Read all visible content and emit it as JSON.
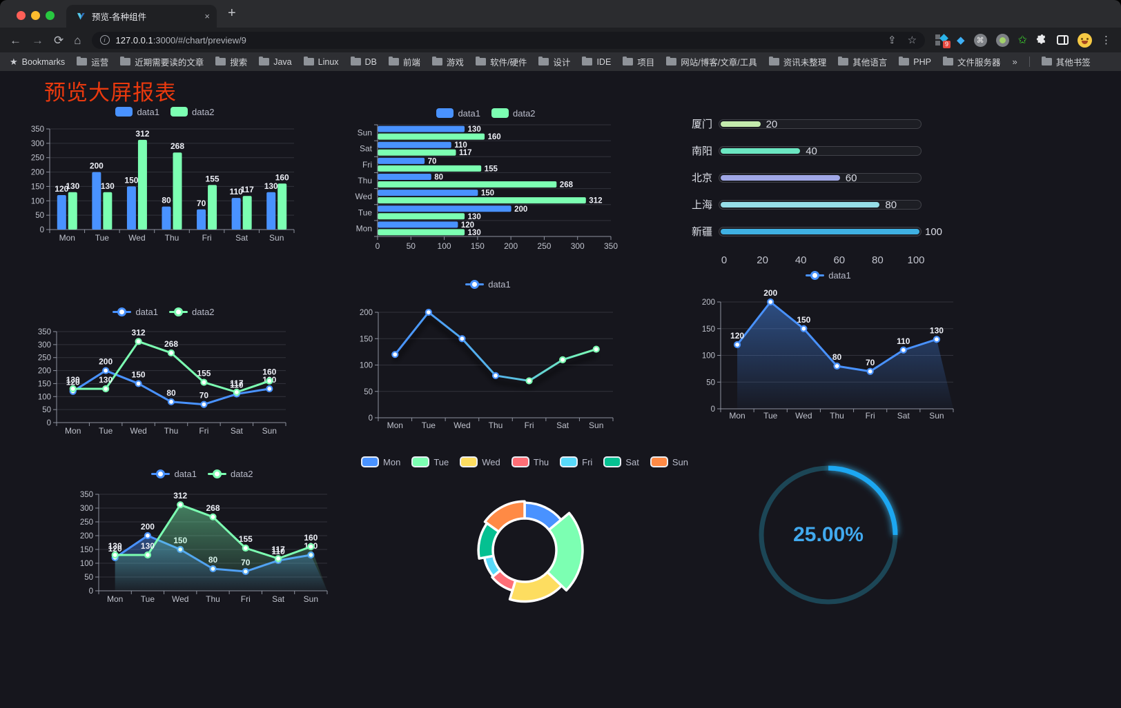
{
  "browser": {
    "traffic_colors": [
      "#ff5f57",
      "#febc2e",
      "#28c840"
    ],
    "tab_title": "预览-各种组件",
    "tab_close": "×",
    "new_tab": "+",
    "icons": {
      "back": "←",
      "forward": "→",
      "reload": "⟳",
      "home": "⌂",
      "info": "i",
      "share": "⇪",
      "star": "☆",
      "gem": "◆",
      "cmd": "⌘",
      "green_star": "✩",
      "menu": "⋮",
      "bookmarks_star": "★",
      "chevron": "»"
    },
    "extension_badge": "9",
    "url_host": "127.0.0.1",
    "url_rest": ":3000/#/chart/preview/9",
    "bookmarks_label": "Bookmarks",
    "bookmark_folders": [
      "运营",
      "近期需要读的文章",
      "搜索",
      "Java",
      "Linux",
      "DB",
      "前端",
      "游戏",
      "软件/硬件",
      "设计",
      "IDE",
      "项目",
      "网站/博客/文章/工具",
      "资讯未整理",
      "其他语言",
      "PHP",
      "文件服务器"
    ],
    "other_bookmarks": "其他书签"
  },
  "page": {
    "title": "预览大屏报表",
    "title_color": "#ea390e"
  },
  "chart_data": [
    {
      "id": "c1",
      "type": "bar",
      "categories": [
        "Mon",
        "Tue",
        "Wed",
        "Thu",
        "Fri",
        "Sat",
        "Sun"
      ],
      "series": [
        {
          "name": "data1",
          "color": "#4992ff",
          "values": [
            120,
            200,
            150,
            80,
            70,
            110,
            130
          ]
        },
        {
          "name": "data2",
          "color": "#7cffb2",
          "values": [
            130,
            130,
            312,
            268,
            155,
            117,
            160
          ]
        }
      ],
      "ylim": [
        0,
        350
      ],
      "yticks": [
        0,
        50,
        100,
        150,
        200,
        250,
        300,
        350
      ],
      "legend_icon": "rect",
      "grid": true,
      "point_labels": true
    },
    {
      "id": "c2",
      "type": "bar-horizontal",
      "categories": [
        "Mon",
        "Tue",
        "Wed",
        "Thu",
        "Fri",
        "Sat",
        "Sun"
      ],
      "display_order_top_to_bottom": [
        "Sun",
        "Sat",
        "Fri",
        "Thu",
        "Wed",
        "Tue",
        "Mon"
      ],
      "series": [
        {
          "name": "data1",
          "color": "#4992ff",
          "values": [
            120,
            200,
            150,
            80,
            70,
            110,
            130
          ]
        },
        {
          "name": "data2",
          "color": "#7cffb2",
          "values": [
            130,
            130,
            312,
            268,
            155,
            117,
            160
          ]
        }
      ],
      "xlim": [
        0,
        350
      ],
      "xticks": [
        0,
        50,
        100,
        150,
        200,
        250,
        300,
        350
      ],
      "legend_icon": "rect",
      "grid": true,
      "point_labels": true
    },
    {
      "id": "c3",
      "type": "progress",
      "categories": [
        "厦门",
        "南阳",
        "北京",
        "上海",
        "新疆"
      ],
      "values": [
        20,
        40,
        60,
        80,
        100
      ],
      "colors": [
        "#c4ebad",
        "#6be6c1",
        "#a0a7e6",
        "#96dee8",
        "#3fb1e3"
      ],
      "xlim": [
        0,
        100
      ],
      "xticks": [
        0,
        20,
        40,
        60,
        80,
        100
      ]
    },
    {
      "id": "c4",
      "type": "line",
      "categories": [
        "Mon",
        "Tue",
        "Wed",
        "Thu",
        "Fri",
        "Sat",
        "Sun"
      ],
      "series": [
        {
          "name": "data1",
          "color": "#4992ff",
          "values": [
            120,
            200,
            150,
            80,
            70,
            110,
            130
          ]
        },
        {
          "name": "data2",
          "color": "#7cffb2",
          "values": [
            130,
            130,
            312,
            268,
            155,
            117,
            160
          ]
        }
      ],
      "ylim": [
        0,
        350
      ],
      "yticks": [
        0,
        50,
        100,
        150,
        200,
        250,
        300,
        350
      ],
      "legend_icon": "line",
      "area": false,
      "point_labels": true
    },
    {
      "id": "c5",
      "type": "line-gradient",
      "categories": [
        "Mon",
        "Tue",
        "Wed",
        "Thu",
        "Fri",
        "Sat",
        "Sun"
      ],
      "series": [
        {
          "name": "data1",
          "color": "#4992ff",
          "color_end": "#7cffb2",
          "values": [
            120,
            200,
            150,
            80,
            70,
            110,
            130
          ]
        }
      ],
      "ylim": [
        0,
        200
      ],
      "yticks": [
        0,
        50,
        100,
        150,
        200
      ],
      "legend_icon": "line",
      "area": false,
      "point_labels": false,
      "shadow": true
    },
    {
      "id": "c6",
      "type": "area",
      "categories": [
        "Mon",
        "Tue",
        "Wed",
        "Thu",
        "Fri",
        "Sat",
        "Sun"
      ],
      "series": [
        {
          "name": "data1",
          "color": "#4992ff",
          "values": [
            120,
            200,
            150,
            80,
            70,
            110,
            130
          ]
        }
      ],
      "ylim": [
        0,
        200
      ],
      "yticks": [
        0,
        50,
        100,
        150,
        200
      ],
      "legend_icon": "line",
      "area": true,
      "point_labels": true
    },
    {
      "id": "c7",
      "type": "area",
      "categories": [
        "Mon",
        "Tue",
        "Wed",
        "Thu",
        "Fri",
        "Sat",
        "Sun"
      ],
      "series": [
        {
          "name": "data1",
          "color": "#4992ff",
          "values": [
            120,
            200,
            150,
            80,
            70,
            110,
            130
          ]
        },
        {
          "name": "data2",
          "color": "#7cffb2",
          "values": [
            130,
            130,
            312,
            268,
            155,
            117,
            160
          ]
        }
      ],
      "ylim": [
        0,
        350
      ],
      "yticks": [
        0,
        50,
        100,
        150,
        200,
        250,
        300,
        350
      ],
      "legend_icon": "line",
      "area": true,
      "point_labels": true
    },
    {
      "id": "c8",
      "type": "pie",
      "subtype": "rose",
      "categories": [
        "Mon",
        "Tue",
        "Wed",
        "Thu",
        "Fri",
        "Sat",
        "Sun"
      ],
      "values": [
        120,
        200,
        150,
        80,
        70,
        110,
        130
      ],
      "colors": [
        "#4992ff",
        "#7cffb2",
        "#fddd60",
        "#ff6e76",
        "#58d9f9",
        "#05c091",
        "#ff8a45"
      ],
      "border_color": "#ffffff",
      "legend_icon": "rect-bordered"
    },
    {
      "id": "c9",
      "type": "gauge",
      "value": 25,
      "display": "25.00%",
      "color": "#1ea7f2",
      "track_color": "#1c4656"
    }
  ]
}
